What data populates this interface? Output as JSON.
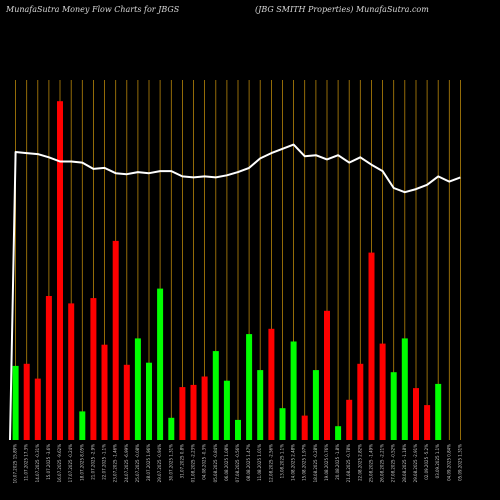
{
  "header": {
    "left": "MunafaSutra  Money Flow  Charts for JBGS",
    "right": "(JBG SMITH Properties) MunafaSutra.com"
  },
  "chart_data": {
    "type": "bar",
    "colors": {
      "up": "#00ff00",
      "down": "#ff0000",
      "line": "#ffffff",
      "grid": "#b8860b",
      "background": "#000000"
    },
    "categories": [
      "10.07.2025 15.89%",
      "11.07.2025 17.3%",
      "14.07.2025 -0.31%",
      "15.07.2025 -3.6%",
      "16.07.2025 -9.62%",
      "17.07.2025 -0.24%",
      "18.07.2025 8.05%",
      "21.07.2025 -2.9%",
      "22.07.2025 -1.1%",
      "23.07.2025 -1.46%",
      "24.07.2025 -6.99%",
      "25.07.2025 -0.08%",
      "28.07.2025 1.96%",
      "29.07.2025 -0.94%",
      "30.07.2025 1.31%",
      "31.07.2025 0.8%",
      "01.08.2025 -2.23%",
      "04.08.2025 -0.3%",
      "05.08.2025 -0.84%",
      "06.08.2025 1.08%",
      "07.08.2025 -0.56%",
      "08.08.2025 1.47%",
      "11.08.2025 1.01%",
      "12.08.2025 -2.56%",
      "13.08.2025 1.1%",
      "14.08.2025 2.48%",
      "15.08.2025 1.97%",
      "18.08.2025 -0.28%",
      "19.08.2025 0.76%",
      "20.08.2025 -1.8%",
      "21.08.2025 -0.78%",
      "22.08.2025 2.82%",
      "25.08.2025 -1.49%",
      "26.08.2025 -2.21%",
      "27.08.2025 -0.52%",
      "28.08.2025 -1.18%",
      "29.08.2025 -2.91%",
      "02.09.2025 -5.2%",
      "03.09.2025 1.1%",
      "04.09.2025 0.84%",
      "05.09.2025 1.31%",
      "08.09.2025 -1.79%",
      "09.09.2025 -1.37%",
      "10.09.2025 1.76%"
    ],
    "values": [
      70,
      72,
      58,
      136,
      320,
      129,
      27,
      134,
      90,
      188,
      71,
      96,
      73,
      143,
      21,
      50,
      52,
      60,
      84,
      56,
      19,
      100,
      66,
      105,
      30,
      93,
      23,
      66,
      122,
      13,
      38,
      72,
      177,
      91,
      64,
      96,
      49,
      33,
      53,
      0,
      0,
      0,
      0,
      0
    ],
    "directions": [
      "up",
      "down",
      "down",
      "down",
      "down",
      "down",
      "up",
      "down",
      "down",
      "down",
      "down",
      "up",
      "up",
      "up",
      "up",
      "down",
      "down",
      "down",
      "up",
      "up",
      "up",
      "up",
      "up",
      "down",
      "up",
      "up",
      "down",
      "up",
      "down",
      "up",
      "down",
      "down",
      "down",
      "down",
      "up",
      "up",
      "down",
      "down",
      "up",
      "up",
      "up",
      "up",
      "up",
      "up"
    ],
    "line": [
      272,
      271,
      270,
      267,
      263,
      263,
      262,
      256,
      257,
      252,
      251,
      253,
      252,
      254,
      254,
      249,
      248,
      249,
      248,
      250,
      253,
      257,
      266,
      271,
      275,
      279,
      268,
      269,
      265,
      269,
      262,
      267,
      260,
      254,
      238,
      234,
      237,
      241,
      249,
      244,
      248,
      0,
      0,
      0
    ],
    "ylim": [
      0,
      340
    ],
    "grid": "vertical"
  }
}
